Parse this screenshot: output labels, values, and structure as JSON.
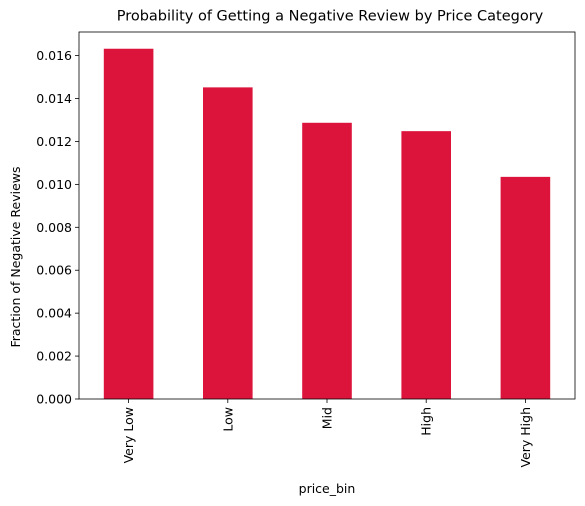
{
  "chart_data": {
    "type": "bar",
    "title": "Probability of Getting a Negative Review by Price Category",
    "xlabel": "price_bin",
    "ylabel": "Fraction of Negative Reviews",
    "categories": [
      "Very Low",
      "Low",
      "Mid",
      "High",
      "Very High"
    ],
    "values": [
      0.01632,
      0.01452,
      0.01287,
      0.01248,
      0.01035
    ],
    "ylim": [
      0,
      0.0171
    ],
    "yticks": [
      "0.000",
      "0.002",
      "0.004",
      "0.006",
      "0.008",
      "0.010",
      "0.012",
      "0.014",
      "0.016"
    ],
    "bar_color": "#dc143c",
    "grid": false,
    "legend": "none"
  }
}
